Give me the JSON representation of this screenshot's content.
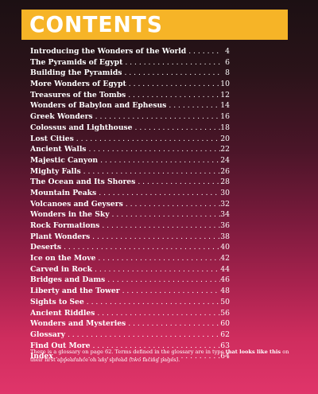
{
  "header": {
    "title": "CONTENTS",
    "banner_color": "#f6b427"
  },
  "toc": [
    {
      "title": "Introducing the Wonders of the World",
      "page": "4"
    },
    {
      "title": "The Pyramids of Egypt",
      "page": "6"
    },
    {
      "title": "Building the Pyramids",
      "page": "8"
    },
    {
      "title": "More Wonders of Egypt",
      "page": "10"
    },
    {
      "title": "Treasures of the Tombs",
      "page": "12"
    },
    {
      "title": "Wonders of Babylon and Ephesus",
      "page": "14"
    },
    {
      "title": "Greek Wonders",
      "page": "16"
    },
    {
      "title": "Colossus and Lighthouse",
      "page": "18"
    },
    {
      "title": "Lost Cities",
      "page": "20"
    },
    {
      "title": "Ancient Walls",
      "page": "22"
    },
    {
      "title": "Majestic Canyon",
      "page": "24"
    },
    {
      "title": "Mighty Falls",
      "page": "26"
    },
    {
      "title": "The Ocean and Its Shores",
      "page": "28"
    },
    {
      "title": "Mountain Peaks",
      "page": "30"
    },
    {
      "title": "Volcanoes and Geysers",
      "page": "32"
    },
    {
      "title": "Wonders in the Sky",
      "page": "34"
    },
    {
      "title": "Rock Formations",
      "page": "36"
    },
    {
      "title": "Plant Wonders",
      "page": "38"
    },
    {
      "title": "Deserts",
      "page": "40"
    },
    {
      "title": "Ice on the Move",
      "page": "42"
    },
    {
      "title": "Carved in Rock",
      "page": "44"
    },
    {
      "title": "Bridges and Dams",
      "page": "46"
    },
    {
      "title": "Liberty and the Tower",
      "page": "48"
    },
    {
      "title": "Sights to See",
      "page": "50"
    },
    {
      "title": "Ancient Riddles",
      "page": "56"
    },
    {
      "title": "Wonders and Mysteries",
      "page": "60"
    },
    {
      "title": "Glossary",
      "page": "62"
    },
    {
      "title": "Find Out More",
      "page": "63"
    },
    {
      "title": "Index",
      "page": "64"
    }
  ],
  "footer_note": {
    "part1": "There is a glossary on page 62. Terms defined in the glossary are in type ",
    "emphasis": "that looks like this",
    "part2": " on their first appearance on any spread (two facing pages)."
  }
}
